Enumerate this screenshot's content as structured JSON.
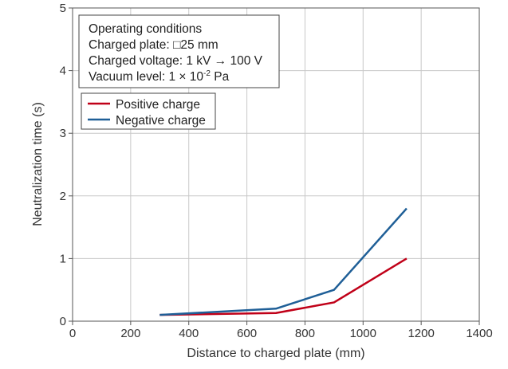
{
  "chart_data": {
    "type": "line",
    "xlabel": "Distance to charged plate (mm)",
    "ylabel": "Neutralization time (s)",
    "xlim": [
      0,
      1400
    ],
    "ylim": [
      0,
      5
    ],
    "xticks": [
      "0",
      "200",
      "400",
      "600",
      "800",
      "1000",
      "1200",
      "1400"
    ],
    "yticks": [
      "0",
      "1",
      "2",
      "3",
      "4",
      "5"
    ],
    "grid": true,
    "legend_placement": "upper-left",
    "series": [
      {
        "name": "Positive charge",
        "color": "#c00018",
        "x": [
          300,
          700,
          900,
          1150
        ],
        "y": [
          0.1,
          0.13,
          0.3,
          1.0
        ]
      },
      {
        "name": "Negative charge",
        "color": "#1f5f97",
        "x": [
          300,
          700,
          900,
          1150
        ],
        "y": [
          0.1,
          0.2,
          0.5,
          1.8
        ]
      }
    ],
    "annotation": {
      "title": "Operating conditions",
      "plate": "Charged plate: □25 mm",
      "voltage": "Charged voltage: 1 kV → 100 V",
      "vacuum_main": "Vacuum level: 1 × 10",
      "vacuum_exp": "-2",
      "vacuum_unit": " Pa"
    }
  }
}
